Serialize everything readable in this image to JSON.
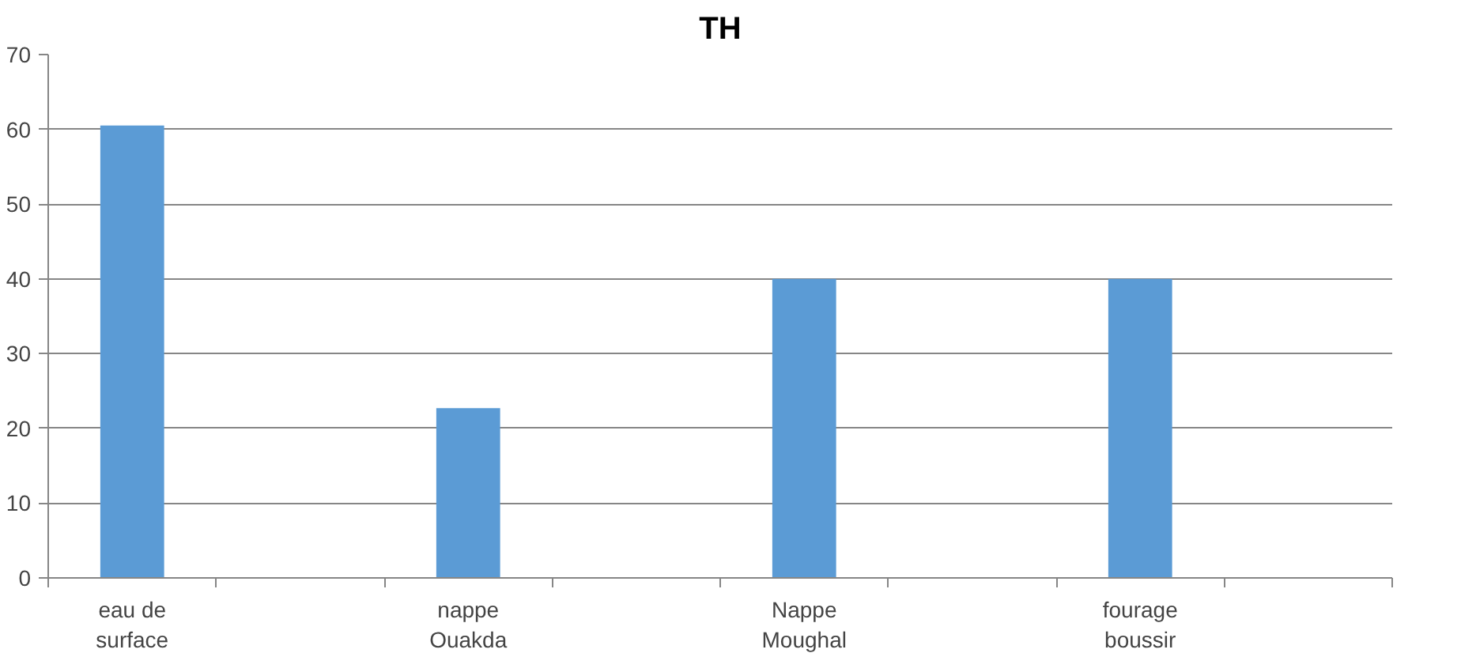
{
  "chart_data": {
    "type": "bar",
    "title": "TH",
    "categories": [
      "eau de\nsurface",
      null,
      "nappe\nOuakda",
      null,
      "Nappe\nMoughal",
      null,
      "fourage\nboussir",
      null
    ],
    "values": [
      60.5,
      null,
      22.7,
      null,
      40,
      null,
      40,
      null
    ],
    "color": "#5b9bd5",
    "ylim": [
      0,
      70
    ],
    "yticks": [
      0,
      10,
      20,
      30,
      40,
      50,
      60,
      70
    ],
    "grid": "y"
  }
}
